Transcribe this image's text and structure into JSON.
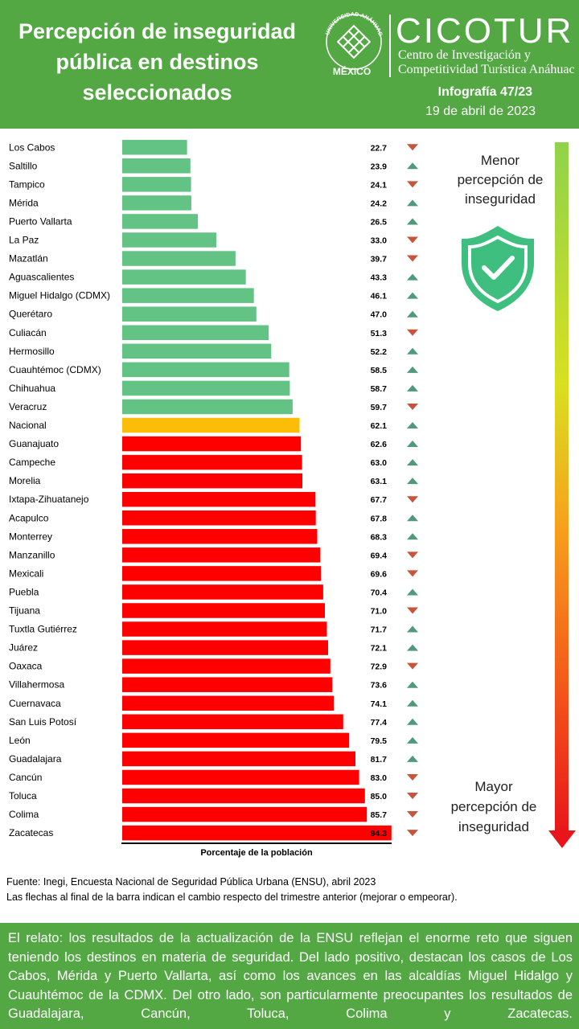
{
  "header": {
    "title_lines": [
      "Percepción de inseguridad",
      "pública en destinos",
      "seleccionados"
    ],
    "university_logo_text": "UNIVERSIDAD ANÁHUAC · VINCE IN BONO MALUM",
    "university_country": "MÉXICO",
    "org_name": "CICOTUR",
    "org_line1": "Centro de Investigación y",
    "org_line2": "Competitividad Turística Anáhuac",
    "infografia": "Infografía 47/23",
    "date": "19 de abril de 2023"
  },
  "legend": {
    "top_label": [
      "Menor",
      "percepción de",
      "inseguridad"
    ],
    "bottom_label": [
      "Mayor",
      "percepción de",
      "inseguridad"
    ],
    "shield_icon": "shield-check-icon"
  },
  "chart_data": {
    "type": "bar",
    "orientation": "horizontal",
    "xlabel": "Porcentaje de la población",
    "categories": [
      "Los Cabos",
      "Saltillo",
      "Tampico",
      "Mérida",
      "Puerto Vallarta",
      "La Paz",
      "Mazatlán",
      "Aguascalientes",
      "Miguel Hidalgo (CDMX)",
      "Querétaro",
      "Culiacán",
      "Hermosillo",
      "Cuauhtémoc (CDMX)",
      "Chihuahua",
      "Veracruz",
      "Nacional",
      "Guanajuato",
      "Campeche",
      "Morelia",
      "Ixtapa-Zihuatanejo",
      "Acapulco",
      "Monterrey",
      "Manzanillo",
      "Mexicali",
      "Puebla",
      "Tijuana",
      "Tuxtla Gutiérrez",
      "Juárez",
      "Oaxaca",
      "Villahermosa",
      "Cuernavaca",
      "San Luis Potosí",
      "León",
      "Guadalajara",
      "Cancún",
      "Toluca",
      "Colima",
      "Zacatecas"
    ],
    "values": [
      22.7,
      23.9,
      24.1,
      24.2,
      26.5,
      33.0,
      39.7,
      43.3,
      46.1,
      47.0,
      51.3,
      52.2,
      58.5,
      58.7,
      59.7,
      62.1,
      62.6,
      63.0,
      63.1,
      67.7,
      67.8,
      68.3,
      69.4,
      69.6,
      70.4,
      71.0,
      71.7,
      72.1,
      72.9,
      73.6,
      74.1,
      77.4,
      79.5,
      81.7,
      83.0,
      85.0,
      85.7,
      94.3
    ],
    "labels": [
      "22.7",
      "23.9",
      "24.1",
      "24.2",
      "26.5",
      "33.0",
      "39.7",
      "43.3",
      "46.1",
      "47.0",
      "51.3",
      "52.2",
      "58.5",
      "58.7",
      "59.7",
      "62.1",
      "62.6",
      "63.0",
      "63.1",
      "67.7",
      "67.8",
      "68.3",
      "69.4",
      "69.6",
      "70.4",
      "71.0",
      "71.7",
      "72.1",
      "72.9",
      "73.6",
      "74.1",
      "77.4",
      "79.5",
      "81.7",
      "83.0",
      "85.0",
      "85.7",
      "94.3"
    ],
    "change": [
      "down",
      "up",
      "down",
      "up",
      "up",
      "down",
      "down",
      "up",
      "up",
      "up",
      "down",
      "up",
      "up",
      "up",
      "down",
      "up",
      "up",
      "up",
      "up",
      "down",
      "up",
      "up",
      "down",
      "down",
      "up",
      "down",
      "up",
      "up",
      "down",
      "up",
      "up",
      "up",
      "up",
      "up",
      "down",
      "down",
      "down",
      "down"
    ],
    "xlim": [
      0,
      100
    ],
    "colors": {
      "low": "#63c384",
      "national": "#fbbd07",
      "high": "#ff0000",
      "arrow_up": "#4e9a7a",
      "arrow_down": "#c8543c"
    }
  },
  "source": {
    "line1": "Fuente: Inegi,  Encuesta Nacional de Seguridad Pública Urbana (ENSU),  abril 2023",
    "line2": "Las flechas al final de la barra indican  el cambio respecto del trimestre anterior (mejorar o empeorar)."
  },
  "footer": {
    "text": "El relato: los resultados de la actualización de la ENSU reflejan el enorme reto que siguen teniendo los destinos en materia de seguridad. Del lado positivo, destacan los casos de Los Cabos, Mérida y Puerto Vallarta, así como los avances en las alcaldías Miguel Hidalgo y Cuauhtémoc de la CDMX. Del otro lado, son particularmente preocupantes los resultados de Guadalajara, Cancún, Toluca, Colima y Zacatecas."
  }
}
